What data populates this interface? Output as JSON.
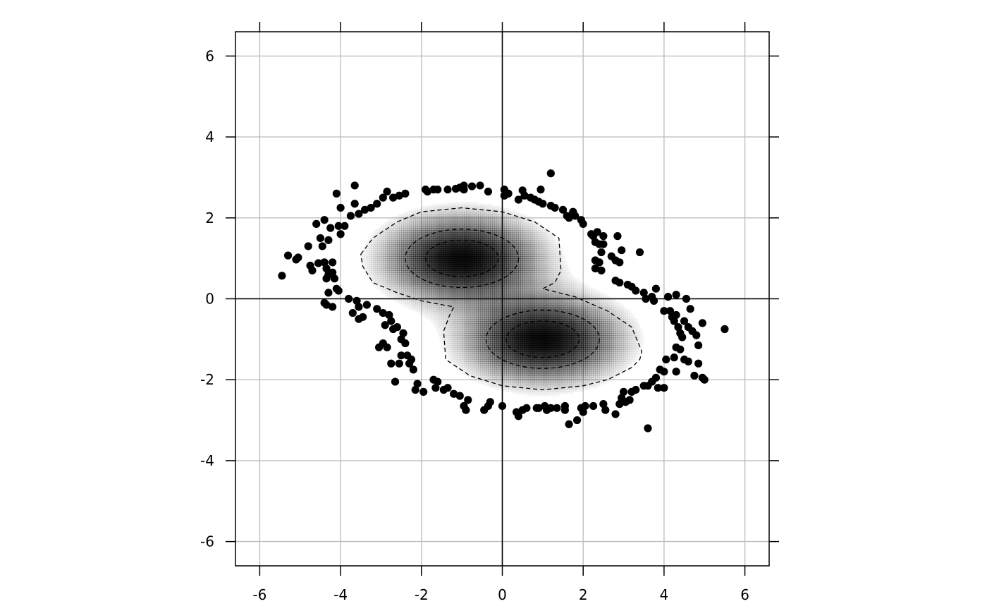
{
  "chart_data": {
    "type": "scatter",
    "title": "",
    "xlabel": "",
    "ylabel": "",
    "xlim": [
      -6.6,
      6.6
    ],
    "ylim": [
      -6.6,
      6.6
    ],
    "x_ticks": [
      -6,
      -4,
      -2,
      0,
      2,
      4,
      6
    ],
    "y_ticks": [
      -6,
      -4,
      -2,
      0,
      2,
      4,
      6
    ],
    "x_tick_labels": [
      "-6",
      "-4",
      "-2",
      "0",
      "2",
      "4",
      "6"
    ],
    "y_tick_labels": [
      "-6",
      "-4",
      "-2",
      "0",
      "2",
      "4",
      "6"
    ],
    "grid": true,
    "reference_lines": {
      "x": 0,
      "y": 0
    },
    "density": {
      "description_free": true,
      "components": [
        {
          "cx": -1.0,
          "cy": 1.0,
          "sx": 1.25,
          "sy": 0.7
        },
        {
          "cx": 1.0,
          "cy": -1.0,
          "sx": 1.25,
          "sy": 0.7
        }
      ],
      "fill_color": "#000000",
      "contours": [
        {
          "level": "outer",
          "path": [
            [
              -3.5,
              1.1
            ],
            [
              -3.2,
              1.5
            ],
            [
              -2.6,
              1.9
            ],
            [
              -2.0,
              2.15
            ],
            [
              -1.0,
              2.25
            ],
            [
              0.0,
              2.15
            ],
            [
              0.8,
              1.9
            ],
            [
              1.4,
              1.5
            ],
            [
              1.45,
              0.7
            ],
            [
              1.3,
              0.4
            ],
            [
              1.0,
              0.25
            ],
            [
              1.8,
              0.05
            ],
            [
              2.6,
              -0.3
            ],
            [
              3.2,
              -0.7
            ],
            [
              3.45,
              -1.3
            ],
            [
              3.4,
              -1.5
            ],
            [
              3.2,
              -1.7
            ],
            [
              2.6,
              -2.0
            ],
            [
              2.0,
              -2.15
            ],
            [
              1.0,
              -2.25
            ],
            [
              0.0,
              -2.15
            ],
            [
              -0.8,
              -1.9
            ],
            [
              -1.4,
              -1.5
            ],
            [
              -1.45,
              -0.8
            ],
            [
              -1.3,
              -0.4
            ],
            [
              -1.2,
              -0.2
            ],
            [
              -2.0,
              -0.05
            ],
            [
              -2.6,
              0.15
            ],
            [
              -3.2,
              0.4
            ],
            [
              -3.45,
              0.8
            ],
            [
              -3.5,
              1.1
            ]
          ]
        },
        {
          "level": "middle-a",
          "ellipse": {
            "cx": -1.0,
            "cy": 1.0,
            "rx": 1.4,
            "ry": 0.72
          }
        },
        {
          "level": "inner-a",
          "ellipse": {
            "cx": -1.0,
            "cy": 1.0,
            "rx": 0.9,
            "ry": 0.45
          }
        },
        {
          "level": "middle-b",
          "ellipse": {
            "cx": 1.0,
            "cy": -1.0,
            "rx": 1.4,
            "ry": 0.72
          }
        },
        {
          "level": "inner-b",
          "ellipse": {
            "cx": 1.0,
            "cy": -1.0,
            "rx": 0.9,
            "ry": 0.45
          }
        }
      ]
    },
    "points": [
      [
        -5.45,
        0.57
      ],
      [
        -5.3,
        1.07
      ],
      [
        -5.1,
        0.97
      ],
      [
        -5.05,
        1.02
      ],
      [
        -4.8,
        1.3
      ],
      [
        -4.75,
        0.82
      ],
      [
        -4.7,
        0.7
      ],
      [
        -4.6,
        1.85
      ],
      [
        -4.55,
        0.88
      ],
      [
        -4.5,
        1.5
      ],
      [
        -4.45,
        1.3
      ],
      [
        -4.4,
        1.95
      ],
      [
        -4.4,
        0.9
      ],
      [
        -4.35,
        0.75
      ],
      [
        -4.35,
        0.5
      ],
      [
        -4.3,
        0.6
      ],
      [
        -4.3,
        1.45
      ],
      [
        -4.25,
        1.75
      ],
      [
        -4.2,
        0.9
      ],
      [
        -4.2,
        0.65
      ],
      [
        -4.15,
        0.5
      ],
      [
        -4.1,
        0.25
      ],
      [
        -4.05,
        1.8
      ],
      [
        -4.0,
        1.6
      ],
      [
        -4.0,
        2.25
      ],
      [
        -3.9,
        1.8
      ],
      [
        -3.75,
        2.05
      ],
      [
        -3.65,
        2.35
      ],
      [
        -3.55,
        2.1
      ],
      [
        -4.1,
        2.6
      ],
      [
        -3.65,
        2.8
      ],
      [
        -3.4,
        2.2
      ],
      [
        -3.25,
        2.25
      ],
      [
        -3.1,
        2.35
      ],
      [
        -2.95,
        2.5
      ],
      [
        -2.85,
        2.65
      ],
      [
        -2.7,
        2.5
      ],
      [
        -2.55,
        2.55
      ],
      [
        -2.4,
        2.6
      ],
      [
        -1.9,
        2.7
      ],
      [
        -1.85,
        2.65
      ],
      [
        -1.7,
        2.7
      ],
      [
        -1.6,
        2.7
      ],
      [
        -1.35,
        2.7
      ],
      [
        -1.15,
        2.72
      ],
      [
        -1.05,
        2.75
      ],
      [
        -0.95,
        2.8
      ],
      [
        -0.95,
        2.7
      ],
      [
        -0.75,
        2.78
      ],
      [
        -0.55,
        2.8
      ],
      [
        -0.35,
        2.65
      ],
      [
        0.05,
        2.7
      ],
      [
        0.05,
        2.55
      ],
      [
        0.15,
        2.6
      ],
      [
        0.4,
        2.45
      ],
      [
        0.5,
        2.68
      ],
      [
        0.55,
        2.55
      ],
      [
        0.7,
        2.5
      ],
      [
        0.8,
        2.45
      ],
      [
        0.9,
        2.4
      ],
      [
        0.95,
        2.7
      ],
      [
        1.0,
        2.35
      ],
      [
        1.2,
        3.1
      ],
      [
        1.2,
        2.3
      ],
      [
        1.3,
        2.25
      ],
      [
        1.5,
        2.2
      ],
      [
        1.6,
        2.05
      ],
      [
        1.65,
        2.0
      ],
      [
        1.75,
        2.15
      ],
      [
        1.8,
        2.05
      ],
      [
        1.95,
        1.95
      ],
      [
        2.0,
        1.85
      ],
      [
        2.2,
        1.6
      ],
      [
        2.25,
        1.55
      ],
      [
        2.3,
        1.4
      ],
      [
        2.35,
        1.65
      ],
      [
        2.4,
        1.35
      ],
      [
        2.45,
        1.15
      ],
      [
        2.5,
        1.55
      ],
      [
        2.5,
        1.35
      ],
      [
        2.3,
        0.95
      ],
      [
        2.4,
        0.9
      ],
      [
        2.3,
        0.75
      ],
      [
        2.45,
        0.7
      ],
      [
        2.7,
        1.05
      ],
      [
        2.8,
        0.95
      ],
      [
        2.85,
        1.55
      ],
      [
        2.9,
        0.9
      ],
      [
        2.95,
        1.2
      ],
      [
        2.8,
        0.45
      ],
      [
        2.9,
        0.4
      ],
      [
        3.1,
        0.35
      ],
      [
        3.2,
        0.3
      ],
      [
        3.3,
        0.2
      ],
      [
        3.4,
        1.15
      ],
      [
        3.5,
        0.15
      ],
      [
        3.55,
        0.0
      ],
      [
        3.7,
        0.05
      ],
      [
        3.75,
        -0.05
      ],
      [
        3.8,
        0.25
      ],
      [
        4.0,
        -0.3
      ],
      [
        4.1,
        0.05
      ],
      [
        4.15,
        -0.3
      ],
      [
        4.2,
        -0.45
      ],
      [
        4.25,
        -0.55
      ],
      [
        4.3,
        0.1
      ],
      [
        4.3,
        -0.4
      ],
      [
        4.35,
        -0.7
      ],
      [
        4.4,
        -0.85
      ],
      [
        4.45,
        -0.95
      ],
      [
        4.5,
        -0.55
      ],
      [
        4.55,
        0.0
      ],
      [
        4.6,
        -0.7
      ],
      [
        4.65,
        -0.25
      ],
      [
        4.7,
        -0.8
      ],
      [
        4.8,
        -0.9
      ],
      [
        4.85,
        -1.15
      ],
      [
        4.3,
        -1.2
      ],
      [
        4.4,
        -1.25
      ],
      [
        4.5,
        -1.5
      ],
      [
        4.6,
        -1.55
      ],
      [
        4.25,
        -1.45
      ],
      [
        4.85,
        -1.6
      ],
      [
        4.95,
        -0.6
      ],
      [
        4.75,
        -1.9
      ],
      [
        4.95,
        -1.95
      ],
      [
        5.0,
        -2.0
      ],
      [
        4.3,
        -1.8
      ],
      [
        4.05,
        -1.5
      ],
      [
        4.0,
        -1.8
      ],
      [
        3.9,
        -1.75
      ],
      [
        3.8,
        -1.95
      ],
      [
        3.7,
        -2.05
      ],
      [
        3.6,
        -2.15
      ],
      [
        3.5,
        -2.15
      ],
      [
        3.85,
        -2.2
      ],
      [
        4.0,
        -2.2
      ],
      [
        3.3,
        -2.25
      ],
      [
        3.2,
        -2.3
      ],
      [
        3.0,
        -2.3
      ],
      [
        2.95,
        -2.45
      ],
      [
        3.05,
        -2.55
      ],
      [
        3.15,
        -2.5
      ],
      [
        2.9,
        -2.6
      ],
      [
        2.8,
        -2.85
      ],
      [
        2.55,
        -2.75
      ],
      [
        2.5,
        -2.6
      ],
      [
        2.25,
        -2.65
      ],
      [
        2.05,
        -2.65
      ],
      [
        1.95,
        -2.7
      ],
      [
        2.0,
        -2.8
      ],
      [
        1.85,
        -3.0
      ],
      [
        1.55,
        -2.75
      ],
      [
        1.55,
        -2.65
      ],
      [
        1.65,
        -3.1
      ],
      [
        1.35,
        -2.7
      ],
      [
        1.2,
        -2.7
      ],
      [
        1.1,
        -2.75
      ],
      [
        1.05,
        -2.65
      ],
      [
        0.9,
        -2.7
      ],
      [
        0.85,
        -2.7
      ],
      [
        0.6,
        -2.7
      ],
      [
        0.5,
        -2.75
      ],
      [
        0.35,
        -2.8
      ],
      [
        0.4,
        -2.9
      ],
      [
        0.0,
        -2.65
      ],
      [
        -0.3,
        -2.55
      ],
      [
        -0.35,
        -2.65
      ],
      [
        -0.45,
        -2.75
      ],
      [
        -0.85,
        -2.5
      ],
      [
        -0.9,
        -2.75
      ],
      [
        -0.95,
        -2.65
      ],
      [
        -1.05,
        -2.4
      ],
      [
        -1.2,
        -2.35
      ],
      [
        -1.35,
        -2.2
      ],
      [
        -1.45,
        -2.25
      ],
      [
        -1.6,
        -2.05
      ],
      [
        -1.7,
        -2.0
      ],
      [
        -1.65,
        -2.2
      ],
      [
        -1.95,
        -2.3
      ],
      [
        -2.1,
        -2.1
      ],
      [
        -2.15,
        -2.25
      ],
      [
        -2.2,
        -1.75
      ],
      [
        -2.3,
        -1.6
      ],
      [
        -2.25,
        -1.5
      ],
      [
        -2.35,
        -1.4
      ],
      [
        -2.5,
        -1.4
      ],
      [
        -2.55,
        -1.6
      ],
      [
        -2.4,
        -1.1
      ],
      [
        -2.5,
        -1.0
      ],
      [
        -2.45,
        -0.85
      ],
      [
        -2.6,
        -0.7
      ],
      [
        -2.7,
        -0.75
      ],
      [
        -2.75,
        -0.55
      ],
      [
        -2.75,
        -1.6
      ],
      [
        -2.65,
        -2.05
      ],
      [
        -2.8,
        -0.4
      ],
      [
        -2.95,
        -0.35
      ],
      [
        -2.9,
        -0.65
      ],
      [
        -2.95,
        -1.1
      ],
      [
        -2.85,
        -1.2
      ],
      [
        -3.05,
        -1.2
      ],
      [
        -3.1,
        -0.25
      ],
      [
        -3.35,
        -0.15
      ],
      [
        -3.45,
        -0.45
      ],
      [
        -3.55,
        -0.5
      ],
      [
        -3.55,
        -0.2
      ],
      [
        -3.7,
        -0.35
      ],
      [
        -3.6,
        -0.05
      ],
      [
        -3.8,
        0.0
      ],
      [
        -4.05,
        0.2
      ],
      [
        -4.2,
        -0.2
      ],
      [
        -4.35,
        -0.15
      ],
      [
        -4.3,
        0.15
      ],
      [
        -4.4,
        -0.1
      ],
      [
        5.5,
        -0.75
      ],
      [
        3.6,
        -3.2
      ]
    ]
  }
}
